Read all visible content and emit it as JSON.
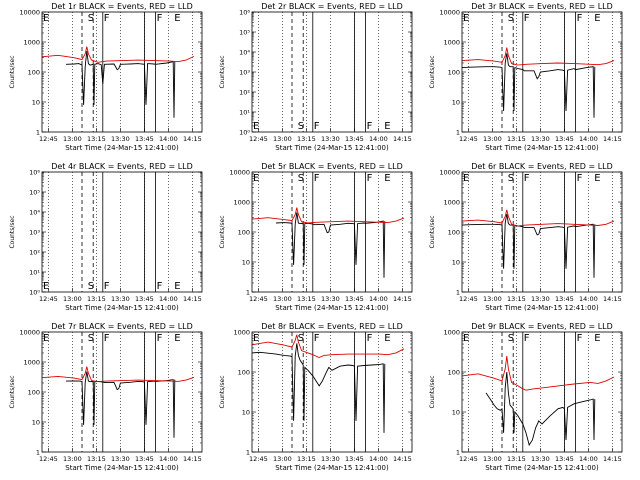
{
  "figure": {
    "x_label": "Start Time (24-Mar-15 12:41:00)",
    "x_ticks": [
      "12:45",
      "13:00",
      "13:15",
      "13:30",
      "13:45",
      "14:00",
      "14:15"
    ],
    "x_tick_minutes": [
      4,
      19,
      34,
      49,
      64,
      79,
      94
    ],
    "markers": {
      "E": [
        0,
        82
      ],
      "S": 28,
      "F": [
        38,
        71
      ],
      "dashed": [
        25,
        32
      ],
      "solid": [
        38,
        64,
        71
      ]
    }
  },
  "chart_data": [
    {
      "type": "line",
      "title": "Det 1r  BLACK = Events, RED = LLD",
      "ylabel": "Counts/sec",
      "yscale": "log",
      "ylim": [
        1,
        10000
      ],
      "y_ticks": [
        "1",
        "10",
        "100",
        "1000",
        "10000"
      ],
      "x_minutes_range": [
        0,
        100
      ],
      "has_data": true,
      "series": [
        {
          "name": "Events",
          "color": "#000000",
          "x": [
            15,
            20,
            23,
            25,
            26,
            27,
            28,
            29,
            30,
            32,
            32.5,
            33,
            35,
            37,
            38,
            39,
            45,
            47,
            48,
            49,
            55,
            60,
            64,
            65,
            66,
            70,
            71,
            78,
            82,
            82.5,
            83
          ],
          "y": [
            180,
            185,
            190,
            170,
            8,
            150,
            500,
            190,
            170,
            180,
            8,
            180,
            190,
            175,
            40,
            180,
            185,
            120,
            130,
            180,
            185,
            190,
            180,
            8,
            190,
            185,
            180,
            200,
            220,
            3,
            220
          ]
        },
        {
          "name": "LLD",
          "color": "#e00000",
          "x": [
            0,
            10,
            20,
            25,
            27,
            28,
            29,
            31,
            35,
            40,
            50,
            60,
            70,
            80,
            85,
            90,
            95
          ],
          "y": [
            320,
            360,
            300,
            260,
            400,
            700,
            400,
            250,
            210,
            230,
            240,
            250,
            240,
            230,
            220,
            250,
            330
          ]
        }
      ]
    },
    {
      "type": "line",
      "title": "Det 2r  BLACK = Events, RED = LLD",
      "ylabel": "Counts/sec",
      "yscale": "log",
      "ylim": [
        1,
        1000000
      ],
      "y_ticks": [
        "10⁰",
        "10¹",
        "10²",
        "10³",
        "10⁴",
        "10⁵",
        "10⁶"
      ],
      "x_minutes_range": [
        0,
        100
      ],
      "has_data": false,
      "series": []
    },
    {
      "type": "line",
      "title": "Det 3r  BLACK = Events, RED = LLD",
      "ylabel": "Counts/sec",
      "yscale": "log",
      "ylim": [
        1,
        10000
      ],
      "y_ticks": [
        "1",
        "10",
        "100",
        "1000",
        "10000"
      ],
      "x_minutes_range": [
        0,
        100
      ],
      "has_data": true,
      "series": [
        {
          "name": "Events",
          "color": "#000000",
          "x": [
            0,
            5,
            15,
            20,
            24,
            25,
            26,
            27,
            28,
            29,
            30,
            32,
            32.5,
            33,
            35,
            38,
            39,
            45,
            47,
            48,
            49,
            55,
            60,
            63,
            64,
            65,
            66,
            70,
            71,
            78,
            82,
            82.5,
            83
          ],
          "y": [
            140,
            145,
            150,
            150,
            145,
            140,
            5,
            200,
            420,
            170,
            150,
            150,
            5,
            140,
            130,
            120,
            110,
            110,
            60,
            70,
            100,
            110,
            120,
            115,
            110,
            5,
            115,
            130,
            120,
            140,
            150,
            3,
            150
          ]
        },
        {
          "name": "LLD",
          "color": "#e00000",
          "x": [
            0,
            10,
            20,
            25,
            27,
            28,
            29,
            31,
            35,
            40,
            50,
            60,
            70,
            80,
            85,
            90,
            95
          ],
          "y": [
            240,
            260,
            230,
            210,
            350,
            650,
            350,
            190,
            170,
            180,
            190,
            200,
            190,
            180,
            175,
            190,
            240
          ]
        }
      ]
    },
    {
      "type": "line",
      "title": "Det 4r  BLACK = Events, RED = LLD",
      "ylabel": "Counts/sec",
      "yscale": "log",
      "ylim": [
        1,
        1000000
      ],
      "y_ticks": [
        "10⁰",
        "10¹",
        "10²",
        "10³",
        "10⁴",
        "10⁵",
        "10⁶"
      ],
      "x_minutes_range": [
        0,
        100
      ],
      "has_data": false,
      "series": []
    },
    {
      "type": "line",
      "title": "Det 5r  BLACK = Events, RED = LLD",
      "ylabel": "Counts/sec",
      "yscale": "log",
      "ylim": [
        1,
        10000
      ],
      "y_ticks": [
        "1",
        "10",
        "100",
        "1000",
        "10000"
      ],
      "x_minutes_range": [
        0,
        100
      ],
      "has_data": true,
      "series": [
        {
          "name": "Events",
          "color": "#000000",
          "x": [
            15,
            20,
            24,
            25,
            26,
            27,
            28,
            29,
            30,
            32,
            32.5,
            33,
            35,
            38,
            39,
            45,
            47,
            48,
            49,
            55,
            60,
            63,
            64,
            65,
            66,
            70,
            71,
            78,
            82,
            82.5,
            83
          ],
          "y": [
            200,
            205,
            200,
            190,
            8,
            180,
            450,
            200,
            190,
            195,
            8,
            190,
            195,
            185,
            175,
            180,
            95,
            100,
            170,
            180,
            195,
            190,
            185,
            8,
            190,
            200,
            195,
            210,
            230,
            3,
            230
          ]
        },
        {
          "name": "LLD",
          "color": "#e00000",
          "x": [
            0,
            10,
            20,
            25,
            27,
            28,
            29,
            31,
            35,
            40,
            50,
            60,
            70,
            80,
            85,
            90,
            95
          ],
          "y": [
            270,
            300,
            260,
            240,
            380,
            650,
            380,
            220,
            200,
            210,
            220,
            230,
            220,
            210,
            205,
            230,
            290
          ]
        }
      ]
    },
    {
      "type": "line",
      "title": "Det 6r  BLACK = Events, RED = LLD",
      "ylabel": "Counts/sec",
      "yscale": "log",
      "ylim": [
        1,
        10000
      ],
      "y_ticks": [
        "1",
        "10",
        "100",
        "1000",
        "10000"
      ],
      "x_minutes_range": [
        0,
        100
      ],
      "has_data": true,
      "series": [
        {
          "name": "Events",
          "color": "#000000",
          "x": [
            0,
            5,
            15,
            20,
            24,
            25,
            26,
            27,
            28,
            29,
            30,
            32,
            32.5,
            33,
            35,
            38,
            39,
            45,
            47,
            48,
            49,
            55,
            60,
            63,
            64,
            65,
            66,
            70,
            71,
            78,
            82,
            82.5,
            83
          ],
          "y": [
            170,
            175,
            180,
            180,
            175,
            170,
            6,
            200,
            400,
            190,
            170,
            170,
            6,
            165,
            160,
            150,
            140,
            140,
            80,
            85,
            130,
            140,
            150,
            145,
            140,
            6,
            145,
            160,
            150,
            170,
            180,
            3,
            180
          ]
        },
        {
          "name": "LLD",
          "color": "#e00000",
          "x": [
            0,
            10,
            20,
            25,
            27,
            28,
            29,
            31,
            35,
            40,
            50,
            60,
            70,
            80,
            85,
            90,
            95
          ],
          "y": [
            230,
            250,
            220,
            200,
            330,
            550,
            330,
            180,
            160,
            170,
            180,
            190,
            180,
            170,
            165,
            180,
            230
          ]
        }
      ]
    },
    {
      "type": "line",
      "title": "Det 7r  BLACK = Events, RED = LLD",
      "ylabel": "Counts/sec",
      "yscale": "log",
      "ylim": [
        1,
        10000
      ],
      "y_ticks": [
        "1",
        "10",
        "100",
        "1000",
        "10000"
      ],
      "x_minutes_range": [
        0,
        100
      ],
      "has_data": true,
      "series": [
        {
          "name": "Events",
          "color": "#000000",
          "x": [
            15,
            20,
            24,
            25,
            26,
            27,
            28,
            29,
            30,
            32,
            32.5,
            33,
            35,
            38,
            39,
            45,
            47,
            48,
            49,
            55,
            60,
            63,
            64,
            65,
            66,
            70,
            71,
            78,
            82,
            82.5,
            83
          ],
          "y": [
            230,
            235,
            230,
            220,
            8,
            210,
            480,
            230,
            220,
            225,
            8,
            220,
            225,
            215,
            205,
            210,
            120,
            130,
            200,
            210,
            225,
            220,
            215,
            8,
            220,
            230,
            225,
            240,
            260,
            3,
            260
          ]
        },
        {
          "name": "LLD",
          "color": "#e00000",
          "x": [
            0,
            10,
            20,
            25,
            27,
            28,
            29,
            31,
            35,
            40,
            50,
            60,
            70,
            80,
            85,
            90,
            95
          ],
          "y": [
            300,
            330,
            290,
            260,
            420,
            700,
            420,
            240,
            220,
            230,
            240,
            250,
            240,
            230,
            225,
            250,
            310
          ]
        }
      ]
    },
    {
      "type": "line",
      "title": "Det 8r  BLACK = Events, RED = LLD",
      "ylabel": "Counts/sec",
      "yscale": "log",
      "ylim": [
        1,
        1000
      ],
      "y_ticks": [
        "1",
        "10",
        "100",
        "1000"
      ],
      "x_minutes_range": [
        0,
        100
      ],
      "has_data": true,
      "series": [
        {
          "name": "Events",
          "color": "#000000",
          "x": [
            0,
            5,
            15,
            20,
            24,
            25,
            26,
            27,
            28,
            29,
            30,
            32,
            32.5,
            33,
            35,
            38,
            40,
            42,
            44,
            46,
            48,
            50,
            55,
            60,
            63,
            64,
            65,
            66,
            70,
            75,
            80,
            82,
            82.5,
            83
          ],
          "y": [
            300,
            310,
            280,
            260,
            250,
            240,
            6,
            250,
            520,
            260,
            200,
            150,
            6,
            130,
            110,
            80,
            60,
            45,
            60,
            90,
            130,
            110,
            140,
            150,
            145,
            140,
            6,
            140,
            145,
            150,
            155,
            160,
            3,
            160
          ]
        },
        {
          "name": "LLD",
          "color": "#e00000",
          "x": [
            0,
            10,
            20,
            25,
            27,
            28,
            29,
            31,
            35,
            38,
            40,
            42,
            45,
            50,
            60,
            70,
            80,
            85,
            90,
            95
          ],
          "y": [
            480,
            560,
            470,
            420,
            620,
            850,
            560,
            340,
            300,
            270,
            250,
            230,
            260,
            270,
            280,
            280,
            280,
            270,
            300,
            380
          ]
        }
      ]
    },
    {
      "type": "line",
      "title": "Det 9r  BLACK = Events, RED = LLD",
      "ylabel": "Counts/sec",
      "yscale": "log",
      "ylim": [
        1,
        1000
      ],
      "y_ticks": [
        "1",
        "10",
        "100",
        "1000"
      ],
      "x_minutes_range": [
        0,
        100
      ],
      "has_data": true,
      "series": [
        {
          "name": "Events",
          "color": "#000000",
          "x": [
            15,
            18,
            20,
            22,
            24,
            25,
            26,
            27,
            28,
            29,
            30,
            32,
            32.5,
            33,
            35,
            38,
            40,
            42,
            44,
            46,
            48,
            50,
            55,
            60,
            63,
            64,
            65,
            66,
            70,
            75,
            80,
            82,
            82.5,
            83
          ],
          "y": [
            30,
            20,
            15,
            12,
            11,
            12,
            3,
            40,
            100,
            30,
            15,
            12,
            3,
            10,
            8,
            5,
            3,
            1.5,
            2,
            4,
            6,
            5,
            8,
            12,
            13,
            12,
            2,
            13,
            16,
            18,
            20,
            21,
            2,
            21
          ]
        },
        {
          "name": "LLD",
          "color": "#e00000",
          "x": [
            0,
            10,
            20,
            25,
            27,
            28,
            29,
            31,
            35,
            38,
            40,
            45,
            50,
            60,
            70,
            80,
            85,
            90,
            95
          ],
          "y": [
            80,
            90,
            70,
            60,
            120,
            250,
            120,
            55,
            45,
            38,
            35,
            38,
            40,
            45,
            50,
            55,
            52,
            60,
            75
          ]
        }
      ]
    }
  ]
}
